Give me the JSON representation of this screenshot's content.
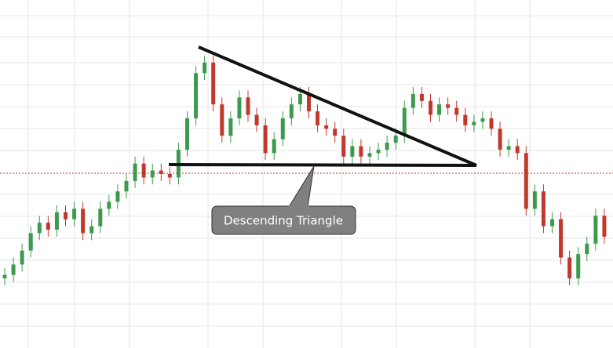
{
  "chart_data": {
    "type": "candlestick",
    "annotations": [
      "Descending Triangle"
    ],
    "ylim": [
      0,
      100
    ],
    "up_color": "#3c9a4e",
    "down_color": "#c0392b",
    "open": [
      20,
      21,
      24,
      28,
      33,
      36,
      34,
      39,
      37,
      40,
      33,
      35,
      40,
      42,
      45,
      48,
      53,
      49,
      51,
      50,
      49,
      57,
      66,
      79,
      82,
      70,
      61,
      66,
      72,
      67,
      64,
      56,
      60,
      66,
      70,
      73,
      68,
      64,
      63,
      61,
      55,
      58,
      55,
      56,
      57,
      59,
      61,
      69,
      73,
      71,
      67,
      70,
      69,
      67,
      64,
      65,
      66,
      63,
      57,
      58,
      56,
      40,
      45,
      35,
      37,
      26,
      20,
      27,
      30,
      38
    ],
    "high": [
      23,
      26,
      30,
      35,
      38,
      38,
      41,
      41,
      42,
      42,
      37,
      42,
      44,
      47,
      50,
      55,
      55,
      53,
      53,
      52,
      59,
      68,
      81,
      84,
      84,
      72,
      68,
      74,
      74,
      69,
      66,
      62,
      68,
      72,
      75,
      75,
      70,
      66,
      65,
      63,
      60,
      60,
      58,
      59,
      61,
      63,
      71,
      75,
      75,
      73,
      72,
      72,
      71,
      69,
      67,
      68,
      68,
      65,
      60,
      60,
      58,
      47,
      47,
      39,
      39,
      28,
      29,
      32,
      40,
      40
    ],
    "low": [
      18,
      19,
      22,
      26,
      31,
      32,
      32,
      35,
      35,
      31,
      31,
      33,
      38,
      40,
      43,
      46,
      47,
      47,
      48,
      47,
      47,
      55,
      64,
      77,
      68,
      59,
      59,
      64,
      65,
      62,
      54,
      54,
      58,
      64,
      68,
      66,
      62,
      61,
      59,
      53,
      53,
      53,
      53,
      54,
      55,
      57,
      59,
      67,
      69,
      65,
      65,
      67,
      65,
      62,
      62,
      63,
      61,
      55,
      55,
      54,
      38,
      38,
      33,
      33,
      24,
      18,
      18,
      25,
      28,
      30
    ],
    "close": [
      21,
      24,
      28,
      33,
      36,
      34,
      39,
      37,
      40,
      33,
      35,
      40,
      42,
      45,
      48,
      53,
      49,
      51,
      50,
      49,
      57,
      66,
      79,
      82,
      70,
      61,
      66,
      72,
      67,
      64,
      56,
      60,
      66,
      70,
      73,
      68,
      64,
      63,
      61,
      55,
      58,
      55,
      56,
      57,
      59,
      61,
      69,
      73,
      71,
      67,
      70,
      69,
      67,
      64,
      65,
      66,
      63,
      57,
      58,
      56,
      40,
      45,
      35,
      37,
      26,
      20,
      27,
      30,
      38,
      32
    ]
  }
}
